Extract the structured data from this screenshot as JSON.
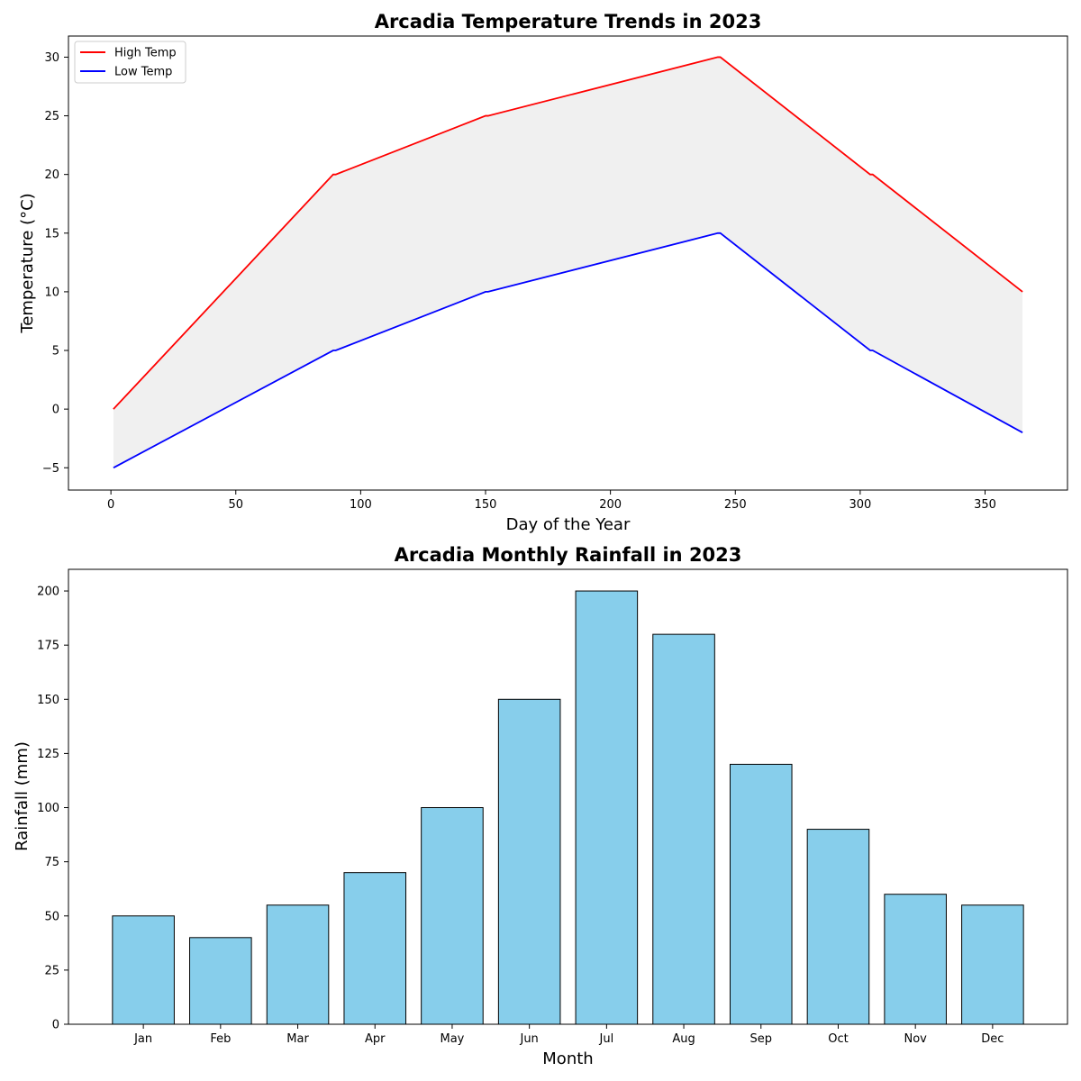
{
  "chart_data": [
    {
      "type": "line",
      "title": "Arcadia Temperature Trends in 2023",
      "xlabel": "Day of the Year",
      "ylabel": "Temperature (°C)",
      "xlim": [
        -17,
        383
      ],
      "ylim": [
        -6.9,
        31.8
      ],
      "xticks": [
        0,
        50,
        100,
        150,
        200,
        250,
        300,
        350
      ],
      "yticks": [
        -5,
        0,
        5,
        10,
        15,
        20,
        25,
        30
      ],
      "x": [
        1,
        89,
        90,
        150,
        151,
        243,
        244,
        304,
        305,
        365
      ],
      "series": [
        {
          "name": "High Temp",
          "color": "#ff0000",
          "values": [
            0,
            20,
            20,
            25,
            25,
            30,
            30,
            20,
            20,
            10
          ]
        },
        {
          "name": "Low Temp",
          "color": "#0000ff",
          "values": [
            -5,
            5,
            5,
            10,
            10,
            15,
            15,
            5,
            5,
            -2
          ]
        }
      ],
      "fill_between": {
        "color": "#f0f0f0"
      },
      "legend": "upper-left"
    },
    {
      "type": "bar",
      "title": "Arcadia Monthly Rainfall in 2023",
      "xlabel": "Month",
      "ylabel": "Rainfall (mm)",
      "ylim": [
        0,
        210
      ],
      "yticks": [
        0,
        25,
        50,
        75,
        100,
        125,
        150,
        175,
        200
      ],
      "categories": [
        "Jan",
        "Feb",
        "Mar",
        "Apr",
        "May",
        "Jun",
        "Jul",
        "Aug",
        "Sep",
        "Oct",
        "Nov",
        "Dec"
      ],
      "values": [
        50,
        40,
        55,
        70,
        100,
        150,
        200,
        180,
        120,
        90,
        60,
        55
      ],
      "bar_color": "#87ceeb",
      "edge_color": "#000000"
    }
  ]
}
